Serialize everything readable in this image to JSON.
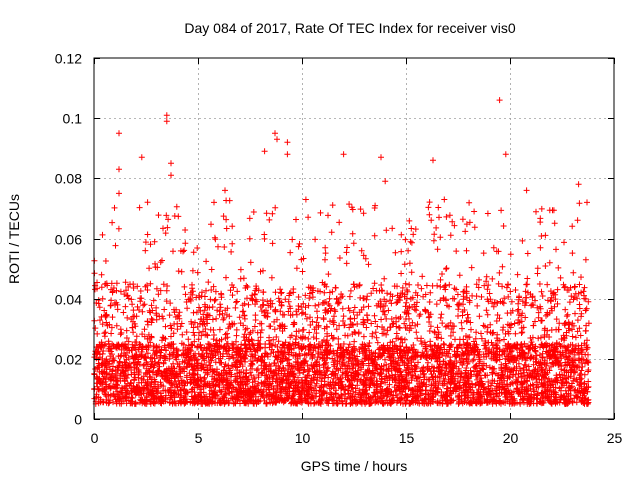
{
  "chart_data": {
    "type": "scatter",
    "title": "Day 084 of 2017, Rate Of TEC Index for receiver vis0",
    "xlabel": "GPS time / hours",
    "ylabel": "ROTI / TECUs",
    "xlim": [
      0,
      25
    ],
    "ylim": [
      0,
      0.12
    ],
    "x_ticks": [
      0,
      5,
      10,
      15,
      20,
      25
    ],
    "x_tick_labels": [
      "0",
      "5",
      "10",
      "15",
      "20",
      "25"
    ],
    "y_ticks": [
      0,
      0.02,
      0.04,
      0.06,
      0.08,
      0.1,
      0.12
    ],
    "y_tick_labels": [
      "0",
      "0.02",
      "0.04",
      "0.06",
      "0.08",
      "0.1",
      "0.12"
    ],
    "grid": true,
    "marker": "plus",
    "color": "#ff0000",
    "series": [
      {
        "name": "ROTI",
        "x_range": [
          0,
          23.8
        ],
        "typical_range": [
          0.005,
          0.045
        ],
        "notable_points": [
          {
            "x": 1.2,
            "y": 0.095
          },
          {
            "x": 1.2,
            "y": 0.083
          },
          {
            "x": 1.2,
            "y": 0.075
          },
          {
            "x": 2.3,
            "y": 0.087
          },
          {
            "x": 3.5,
            "y": 0.101
          },
          {
            "x": 3.5,
            "y": 0.099
          },
          {
            "x": 3.7,
            "y": 0.085
          },
          {
            "x": 3.7,
            "y": 0.081
          },
          {
            "x": 6.3,
            "y": 0.076
          },
          {
            "x": 8.2,
            "y": 0.089
          },
          {
            "x": 8.7,
            "y": 0.095
          },
          {
            "x": 8.8,
            "y": 0.093
          },
          {
            "x": 9.3,
            "y": 0.092
          },
          {
            "x": 9.3,
            "y": 0.088
          },
          {
            "x": 12.0,
            "y": 0.088
          },
          {
            "x": 13.8,
            "y": 0.087
          },
          {
            "x": 14.0,
            "y": 0.079
          },
          {
            "x": 16.3,
            "y": 0.086
          },
          {
            "x": 19.5,
            "y": 0.106
          },
          {
            "x": 19.8,
            "y": 0.088
          },
          {
            "x": 20.8,
            "y": 0.076
          },
          {
            "x": 23.3,
            "y": 0.078
          },
          {
            "x": 23.7,
            "y": 0.072
          }
        ]
      }
    ]
  }
}
